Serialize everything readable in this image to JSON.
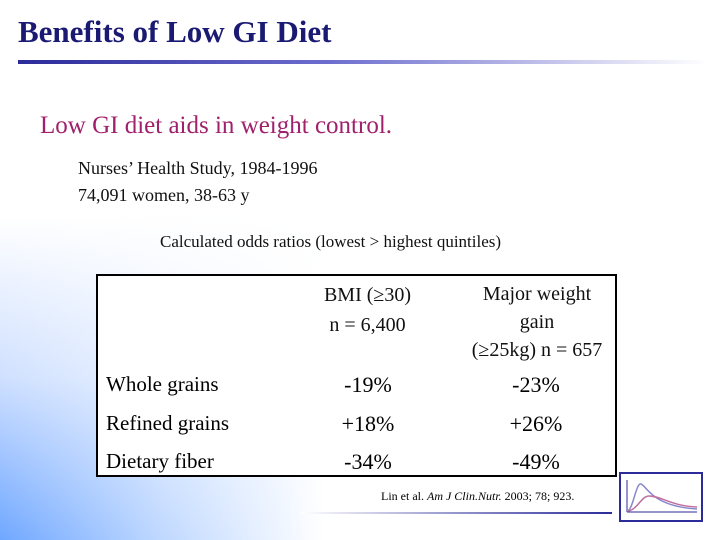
{
  "slide": {
    "title": "Benefits of Low GI Diet",
    "subtitle": "Low GI diet aids in weight control.",
    "study_lines": [
      "Nurses’ Health Study, 1984-1996",
      "74,091 women, 38-63 y"
    ],
    "caption": "Calculated odds ratios (lowest > highest quintiles)"
  },
  "table": {
    "columns": [
      {
        "lines": [
          "BMI (≥30)",
          "n = 6,400"
        ]
      },
      {
        "lines": [
          "Major weight",
          "gain",
          "(≥25kg) n = 657"
        ]
      }
    ],
    "rows": [
      {
        "label": "Whole grains",
        "values": [
          "-19%",
          "-23%"
        ]
      },
      {
        "label": "Refined grains",
        "values": [
          "+18%",
          "+26%"
        ]
      },
      {
        "label": "Dietary fiber",
        "values": [
          "-34%",
          "-49%"
        ]
      }
    ]
  },
  "citation": {
    "authors": "Lin et al. ",
    "journal": "Am J Clin.Nutr.",
    "details": " 2003; 78; 923."
  },
  "colors": {
    "title": "#1a1a73",
    "subtitle": "#a0216b",
    "accent_blue": "#2b2b9a",
    "gradient_blue": "#6fa7ff"
  }
}
